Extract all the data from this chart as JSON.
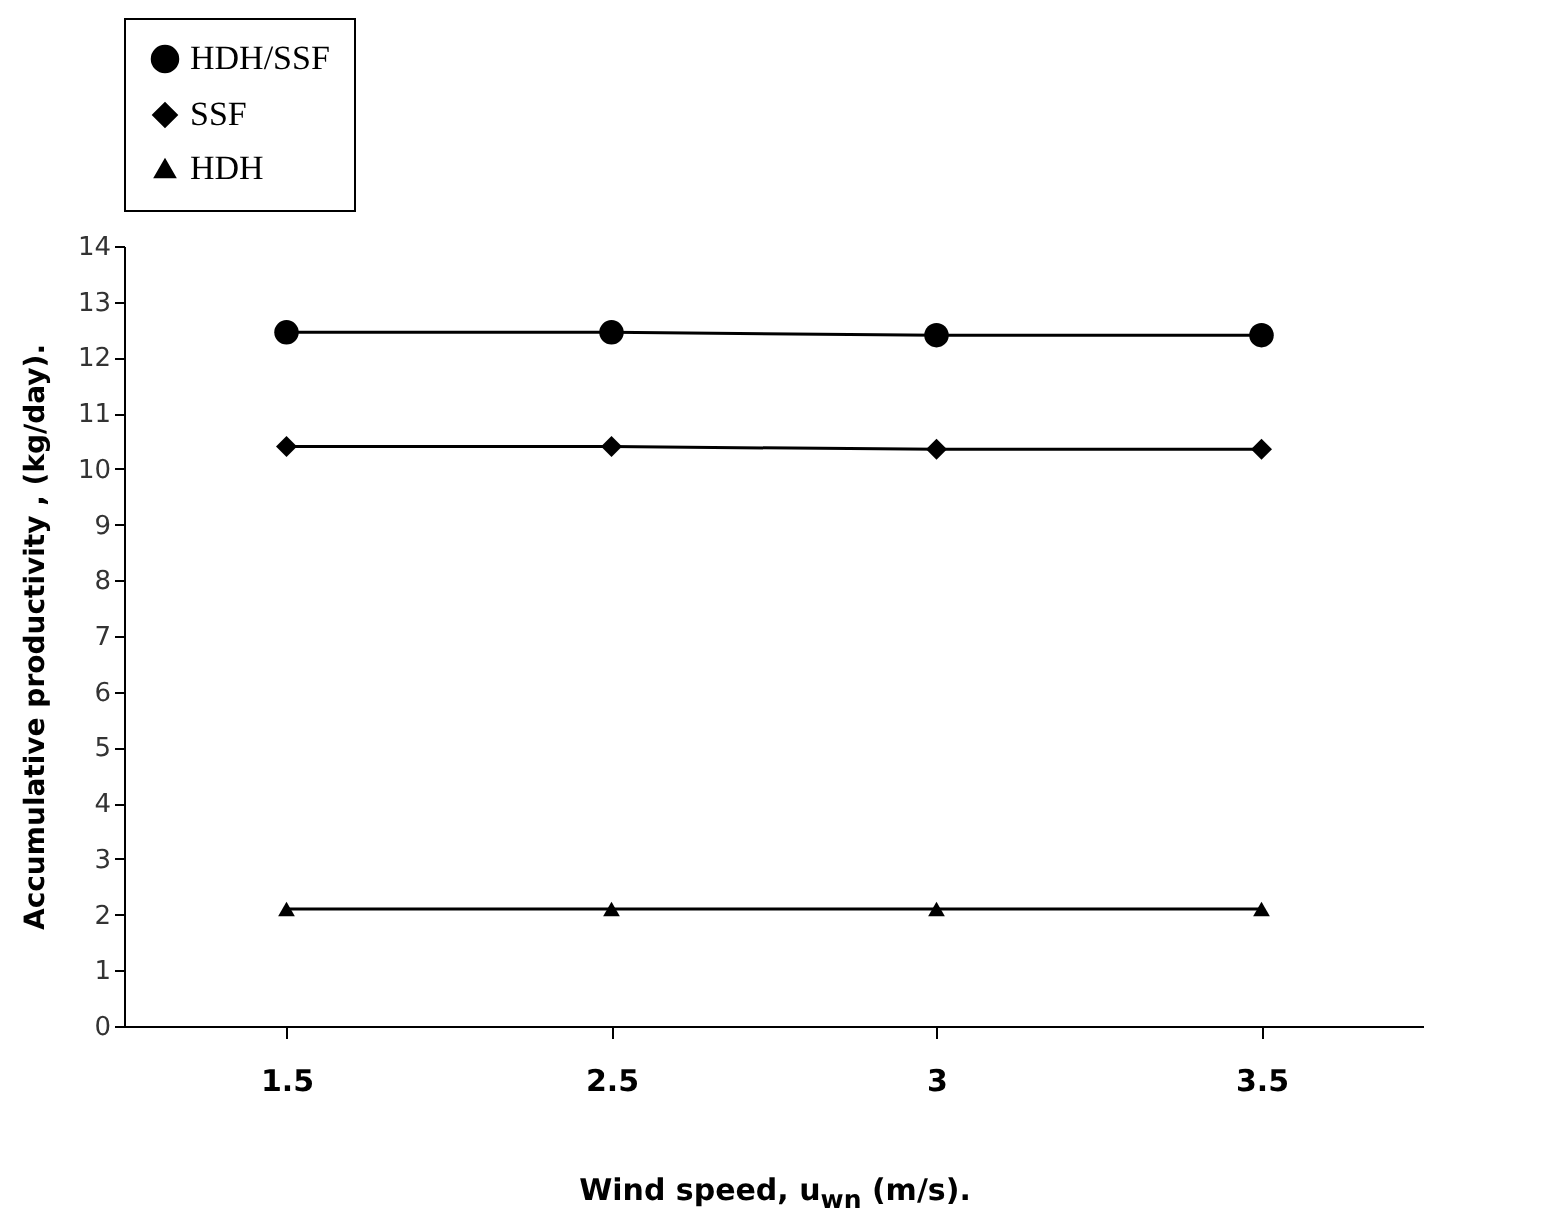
{
  "chart_data": {
    "type": "line",
    "xlabel": "Wind speed, u$_{wn}$ (m/s).",
    "ylabel": "Accumulative  productivity , (kg/day).",
    "categories": [
      "1.5",
      "2.5",
      "3",
      "3.5"
    ],
    "series": [
      {
        "name": "HDH/SSF",
        "color": "#000000",
        "marker": "circle",
        "values": [
          12.45,
          12.45,
          12.4,
          12.4
        ]
      },
      {
        "name": "SSF",
        "color": "#000000",
        "marker": "diamond",
        "values": [
          10.4,
          10.4,
          10.35,
          10.35
        ]
      },
      {
        "name": "HDH",
        "color": "#000000",
        "marker": "triangle",
        "values": [
          2.1,
          2.1,
          2.1,
          2.1
        ]
      }
    ],
    "ylim": [
      0,
      14
    ],
    "yticks": [
      0,
      1,
      2,
      3,
      4,
      5,
      6,
      7,
      8,
      9,
      10,
      11,
      12,
      13,
      14
    ],
    "grid": false,
    "legend": "top left",
    "line_style": "solid"
  }
}
